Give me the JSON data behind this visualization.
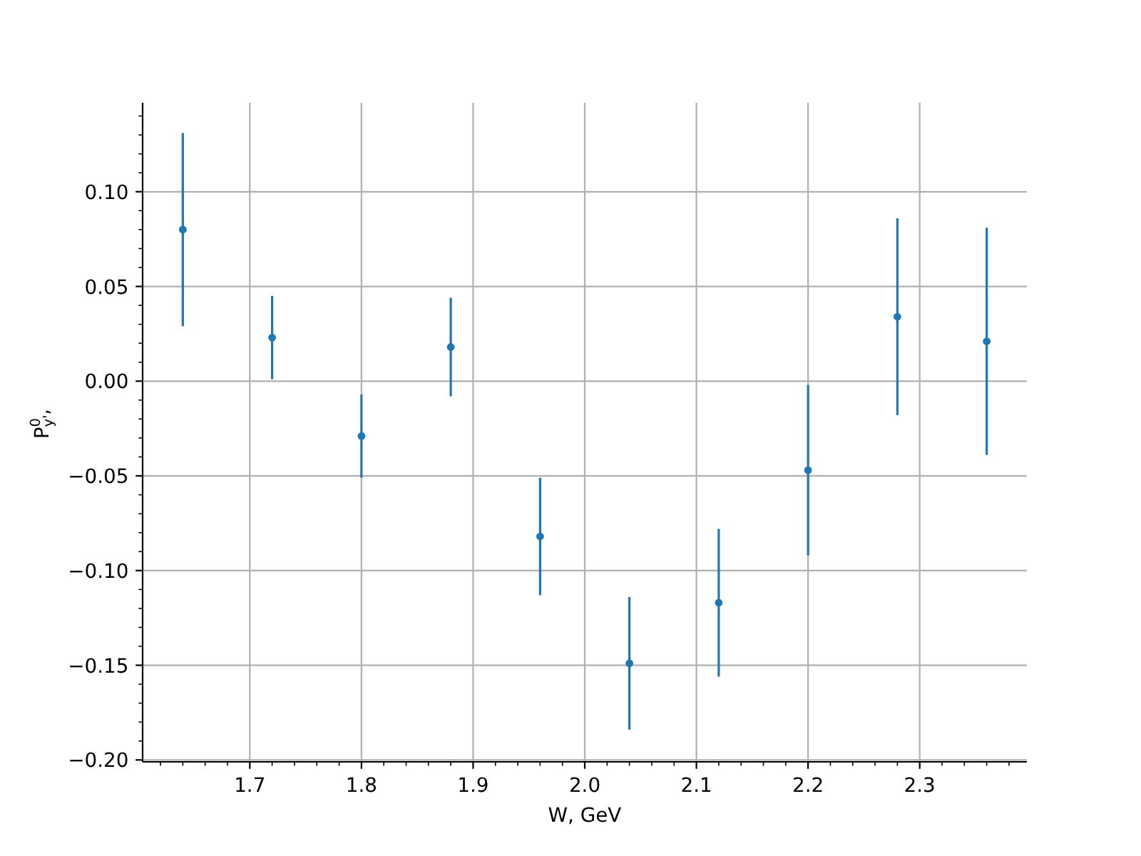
{
  "chart_data": {
    "type": "scatter",
    "xlabel": "W, GeV",
    "ylabel": "P$^{0}$$_{y'}$,",
    "x": [
      1.64,
      1.72,
      1.8,
      1.88,
      1.96,
      2.04,
      2.12,
      2.2,
      2.28,
      2.36
    ],
    "values": [
      0.08,
      0.023,
      -0.029,
      0.018,
      -0.082,
      -0.149,
      -0.117,
      -0.047,
      0.034,
      0.021
    ],
    "errors": [
      0.051,
      0.022,
      0.022,
      0.026,
      0.031,
      0.035,
      0.039,
      0.045,
      0.052,
      0.06
    ],
    "color": "#1f77b4",
    "marker": "circle",
    "xlim": [
      1.604,
      2.396
    ],
    "xticks": [
      {
        "value": 1.62,
        "label": null
      },
      {
        "value": 1.64,
        "label": null
      },
      {
        "value": 1.66,
        "label": null
      },
      {
        "value": 1.68,
        "label": null
      },
      1.7,
      {
        "value": 1.72,
        "label": null
      },
      {
        "value": 1.74,
        "label": null
      },
      {
        "value": 1.76,
        "label": null
      },
      {
        "value": 1.78,
        "label": null
      },
      1.8,
      {
        "value": 1.82,
        "label": null
      },
      {
        "value": 1.84,
        "label": null
      },
      {
        "value": 1.86,
        "label": null
      },
      {
        "value": 1.88,
        "label": null
      },
      1.9,
      {
        "value": 1.92,
        "label": null
      },
      {
        "value": 1.94,
        "label": null
      },
      {
        "value": 1.96,
        "label": null
      },
      {
        "value": 1.98,
        "label": null
      },
      {
        "value": 2,
        "label": "2.0"
      },
      {
        "value": 2.02,
        "label": null
      },
      {
        "value": 2.04,
        "label": null
      },
      {
        "value": 2.06,
        "label": null
      },
      {
        "value": 2.08,
        "label": null
      },
      2.1,
      {
        "value": 2.12,
        "label": null
      },
      {
        "value": 2.14,
        "label": null
      },
      {
        "value": 2.16,
        "label": null
      },
      {
        "value": 2.18,
        "label": null
      },
      2.2,
      {
        "value": 2.22,
        "label": null
      },
      {
        "value": 2.24,
        "label": null
      },
      {
        "value": 2.26,
        "label": null
      },
      {
        "value": 2.28,
        "label": null
      },
      2.3,
      {
        "value": 2.32,
        "label": null
      },
      {
        "value": 2.34,
        "label": null
      },
      {
        "value": 2.36,
        "label": null
      },
      {
        "value": 2.38,
        "label": null
      }
    ],
    "ylim": [
      -0.201,
      0.147
    ],
    "yticks": [
      {
        "value": -0.2,
        "label": "−0.20"
      },
      {
        "value": -0.19,
        "label": null
      },
      {
        "value": -0.18,
        "label": null
      },
      {
        "value": -0.17,
        "label": null
      },
      {
        "value": -0.16,
        "label": null
      },
      {
        "value": -0.15,
        "label": "−0.15"
      },
      {
        "value": -0.14,
        "label": null
      },
      {
        "value": -0.13,
        "label": null
      },
      {
        "value": -0.12,
        "label": null
      },
      {
        "value": -0.11,
        "label": null
      },
      {
        "value": -0.1,
        "label": "−0.10"
      },
      {
        "value": -0.09,
        "label": null
      },
      {
        "value": -0.08,
        "label": null
      },
      {
        "value": -0.07,
        "label": null
      },
      {
        "value": -0.06,
        "label": null
      },
      {
        "value": -0.05,
        "label": "−0.05"
      },
      {
        "value": -0.04,
        "label": null
      },
      {
        "value": -0.03,
        "label": null
      },
      {
        "value": -0.02,
        "label": null
      },
      {
        "value": -0.01,
        "label": null
      },
      {
        "value": 0,
        "label": "0.00"
      },
      {
        "value": 0.01,
        "label": null
      },
      {
        "value": 0.02,
        "label": null
      },
      {
        "value": 0.03,
        "label": null
      },
      {
        "value": 0.04,
        "label": null
      },
      {
        "value": 0.05,
        "label": "0.05"
      },
      {
        "value": 0.06,
        "label": null
      },
      {
        "value": 0.07,
        "label": null
      },
      {
        "value": 0.08,
        "label": null
      },
      {
        "value": 0.09,
        "label": null
      },
      {
        "value": 0.1,
        "label": "0.10"
      },
      {
        "value": 0.11,
        "label": null
      },
      {
        "value": 0.12,
        "label": null
      },
      {
        "value": 0.13,
        "label": null
      },
      {
        "value": 0.14,
        "label": null
      }
    ],
    "grid": true
  }
}
